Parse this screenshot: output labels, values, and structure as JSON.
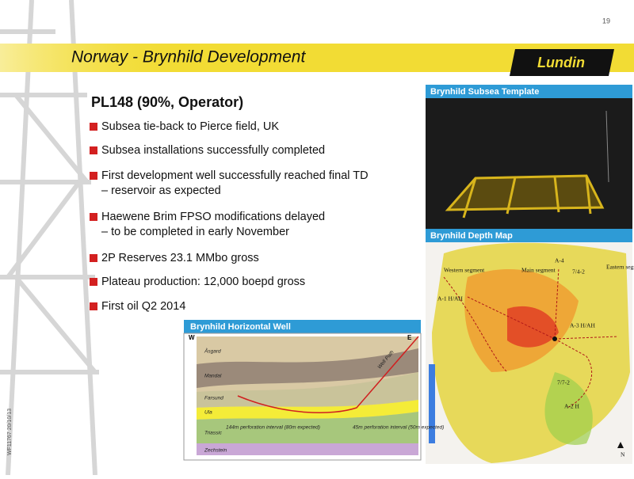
{
  "page_number": "19",
  "header": {
    "title": "Norway - Brynhild Development",
    "logo": "Lundin"
  },
  "side_code": "WF11767 20/10/13",
  "heading": "PL148 (90%, Operator)",
  "bullets": [
    {
      "lines": [
        "Subsea tie-back to Pierce field, UK"
      ]
    },
    {
      "lines": [
        "Subsea installations successfully completed"
      ]
    },
    {
      "lines": [
        "First development well successfully reached final TD",
        "– reservoir as expected"
      ]
    },
    {
      "lines": [
        "Haewene Brim FPSO modifications delayed",
        "– to be completed in early November"
      ]
    },
    {
      "lines": [
        "2P Reserves 23.1 MMbo gross"
      ]
    },
    {
      "lines": [
        "Plateau production: 12,000 boepd gross"
      ]
    },
    {
      "lines": [
        "First oil Q2 2014"
      ]
    }
  ],
  "panels": {
    "template": {
      "title": "Brynhild Subsea Template"
    },
    "depth_map": {
      "title": "Brynhild Depth Map",
      "labels": [
        "Western segment",
        "Main segment",
        "Eastern segment",
        "A-4",
        "7/4-2",
        "A-1 H/AH",
        "A-3 H/AH",
        "7/7-2",
        "A-2 H",
        "N"
      ]
    },
    "well": {
      "title": "Brynhild Horizontal Well",
      "labels": [
        "W",
        "E",
        "Well Path",
        "Åsgard",
        "Mandal",
        "Farsund",
        "Ula",
        "Triassic",
        "Zechstein",
        "144m perforation interval (80m expected)",
        "45m perforation interval (50m expected)"
      ]
    }
  }
}
